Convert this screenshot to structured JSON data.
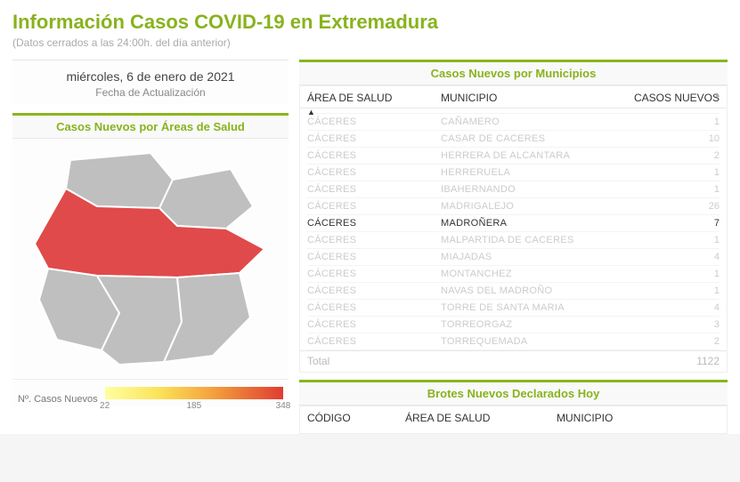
{
  "header": {
    "title": "Información Casos COVID-19 en Extremadura",
    "subtitle": "(Datos cerrados a las 24:00h. del día anterior)"
  },
  "left": {
    "date": "miércoles, 6 de enero de 2021",
    "update_label": "Fecha de Actualización",
    "map_title": "Casos Nuevos por Áreas de Salud",
    "legend_label": "Nº. Casos Nuevos",
    "legend_min": "22",
    "legend_mid": "185",
    "legend_max": "348",
    "map": {
      "fill_default": "#bfbfbf",
      "stroke": "#ffffff",
      "highlight_fill": "#e04a4a"
    }
  },
  "table1": {
    "section_title": "Casos Nuevos por Municipios",
    "col_area": "ÁREA DE SALUD",
    "col_muni": "MUNICIPIO",
    "col_num": "CASOS NUEVOS",
    "rows": [
      {
        "area": "CÁCERES",
        "muni": "CAÑAMERO",
        "num": "1",
        "hl": false
      },
      {
        "area": "CÁCERES",
        "muni": "CASAR DE CACERES",
        "num": "10",
        "hl": false
      },
      {
        "area": "CÁCERES",
        "muni": "HERRERA DE ALCANTARA",
        "num": "2",
        "hl": false
      },
      {
        "area": "CÁCERES",
        "muni": "HERRERUELA",
        "num": "1",
        "hl": false
      },
      {
        "area": "CÁCERES",
        "muni": "IBAHERNANDO",
        "num": "1",
        "hl": false
      },
      {
        "area": "CÁCERES",
        "muni": "MADRIGALEJO",
        "num": "26",
        "hl": false
      },
      {
        "area": "CÁCERES",
        "muni": "MADROÑERA",
        "num": "7",
        "hl": true
      },
      {
        "area": "CÁCERES",
        "muni": "MALPARTIDA DE CACERES",
        "num": "1",
        "hl": false
      },
      {
        "area": "CÁCERES",
        "muni": "MIAJADAS",
        "num": "4",
        "hl": false
      },
      {
        "area": "CÁCERES",
        "muni": "MONTANCHEZ",
        "num": "1",
        "hl": false
      },
      {
        "area": "CÁCERES",
        "muni": "NAVAS DEL MADROÑO",
        "num": "1",
        "hl": false
      },
      {
        "area": "CÁCERES",
        "muni": "TORRE DE SANTA MARIA",
        "num": "4",
        "hl": false
      },
      {
        "area": "CÁCERES",
        "muni": "TORREORGAZ",
        "num": "3",
        "hl": false
      },
      {
        "area": "CÁCERES",
        "muni": "TORREQUEMADA",
        "num": "2",
        "hl": false
      }
    ],
    "total_label": "Total",
    "total_value": "1122"
  },
  "table2": {
    "section_title": "Brotes Nuevos Declarados Hoy",
    "col_code": "CÓDIGO",
    "col_area": "ÁREA DE SALUD",
    "col_muni": "MUNICIPIO"
  }
}
